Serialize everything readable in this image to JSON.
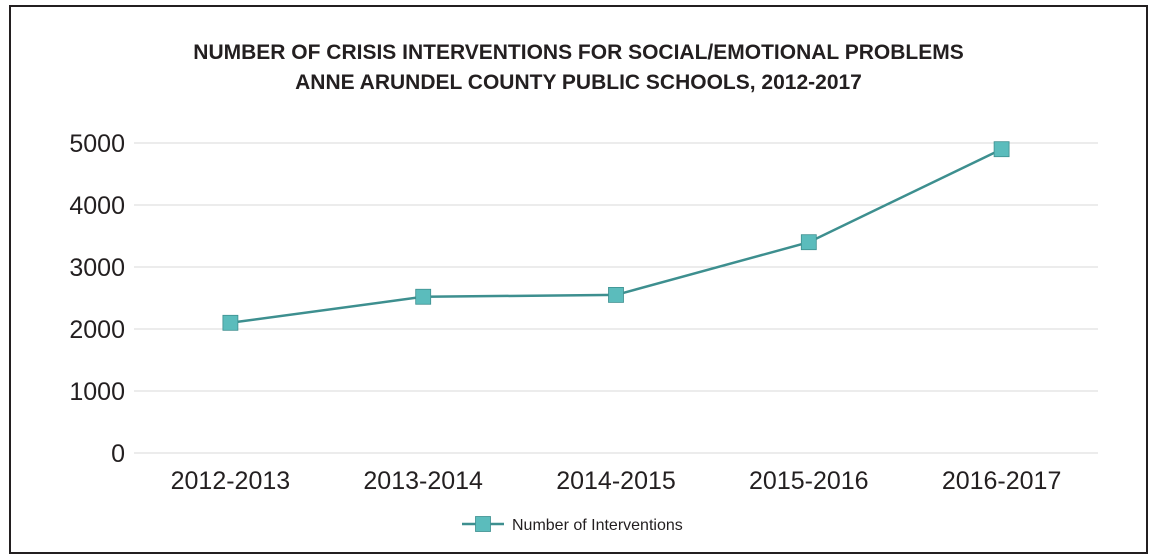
{
  "chart_data": {
    "type": "line",
    "title": [
      "NUMBER OF CRISIS INTERVENTIONS FOR SOCIAL/EMOTIONAL PROBLEMS",
      "ANNE ARUNDEL COUNTY PUBLIC SCHOOLS, 2012-2017"
    ],
    "categories": [
      "2012-2013",
      "2013-2014",
      "2014-2015",
      "2015-2016",
      "2016-2017"
    ],
    "series": [
      {
        "name": "Number of Interventions",
        "values": [
          2100,
          2520,
          2550,
          3400,
          4900
        ],
        "color": "#3d8f8f",
        "marker_color": "#5bbcbc"
      }
    ],
    "xlabel": "",
    "ylabel": "",
    "ylim": [
      0,
      5000
    ],
    "yticks": [
      0,
      1000,
      2000,
      3000,
      4000,
      5000
    ],
    "grid": true,
    "legend": "bottom-center",
    "marker": "square"
  }
}
